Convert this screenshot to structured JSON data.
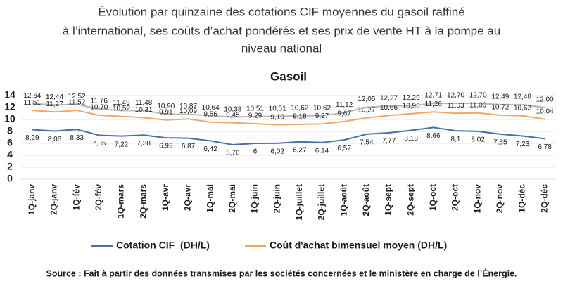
{
  "chart_data": {
    "type": "line",
    "title": [
      "Évolution par quinzaine des cotations CIF moyennes du gasoil raffiné",
      "à l’international, ses coûts d’achat pondérés et ses prix de vente HT à la pompe au",
      "niveau national"
    ],
    "subtitle": "Gasoil",
    "source": "Source : Fait à partir des données transmises par les sociétés concernées et le ministère en charge de l’Énergie.",
    "categories": [
      "1Q-janv",
      "2Q-janv",
      "1Q-fév",
      "2Q-fév",
      "1Q-mars",
      "2Q-mars",
      "1Q-avr",
      "2Q-avr",
      "1Q-mai",
      "2Q-mai",
      "1Q-juin",
      "2Q-juin",
      "1Q-juillet",
      "2Q-juillet",
      "1Q-août",
      "2Q-août",
      "1Q-sept",
      "2Q-sept",
      "1Q-oct",
      "2Q-oct",
      "1Q-nov",
      "2Q-nov",
      "1Q-déc",
      "2Q-déc"
    ],
    "ylim": [
      0,
      14
    ],
    "yticks": [
      0,
      2,
      4,
      6,
      8,
      10,
      12,
      14
    ],
    "grid": true,
    "series": [
      {
        "color": "#b9b9b9",
        "values": [
          12.64,
          12.44,
          12.52,
          11.76,
          11.49,
          11.48,
          10.9,
          10.87,
          10.64,
          10.38,
          10.51,
          10.51,
          10.62,
          10.62,
          11.12,
          12.05,
          12.27,
          12.29,
          12.71,
          12.7,
          12.7,
          12.49,
          12.48,
          12.0
        ],
        "value_labels": [
          "12,64",
          "12,44",
          "12,52",
          "11,76",
          "11,49",
          "11,48",
          "10,90",
          "10,87",
          "10,64",
          "10,38",
          "10,51",
          "10,51",
          "10,62",
          "10,62",
          "11,12",
          "12,05",
          "12,27",
          "12,29",
          "12,71",
          "12,70",
          "12,70",
          "12,49",
          "12,48",
          "12,00"
        ]
      },
      {
        "name": "Coût d'achat bimensuel moyen (DH/L)",
        "color": "#f0a868",
        "values": [
          11.51,
          11.27,
          11.52,
          10.7,
          10.52,
          10.31,
          9.91,
          10.09,
          9.56,
          9.45,
          9.29,
          9.1,
          9.18,
          9.27,
          9.67,
          10.27,
          10.66,
          10.96,
          11.26,
          11.03,
          11.09,
          10.72,
          10.62,
          10.04
        ],
        "value_labels": [
          "11,51",
          "11,27",
          "11,52",
          "10,70",
          "10,52",
          "10,31",
          "9,91",
          "10,09",
          "9,56",
          "9,45",
          "9,29",
          "9,10",
          "9,18",
          "9,27",
          "9,67",
          "10,27",
          "10,66",
          "10,96",
          "11,26",
          "11,03",
          "11,09",
          "10,72",
          "10,62",
          "10,04"
        ]
      },
      {
        "name": "Cotation CIF  (DH/L)",
        "color": "#4a6fa5",
        "values": [
          8.29,
          8.06,
          8.33,
          7.35,
          7.22,
          7.38,
          6.93,
          6.87,
          6.42,
          5.76,
          6,
          6.02,
          6.27,
          6.14,
          6.57,
          7.54,
          7.77,
          8.18,
          8.66,
          8.1,
          8.02,
          7.55,
          7.23,
          6.78
        ],
        "value_labels": [
          "8,29",
          "8,06",
          "8,33",
          "7,35",
          "7,22",
          "7,38",
          "6,93",
          "6,87",
          "6,42",
          "5,76",
          "6",
          "6,02",
          "6,27",
          "6,14",
          "6,57",
          "7,54",
          "7,77",
          "8,18",
          "8,66",
          "8,1",
          "8,02",
          "7,55",
          "7,23",
          "6,78"
        ]
      }
    ]
  }
}
